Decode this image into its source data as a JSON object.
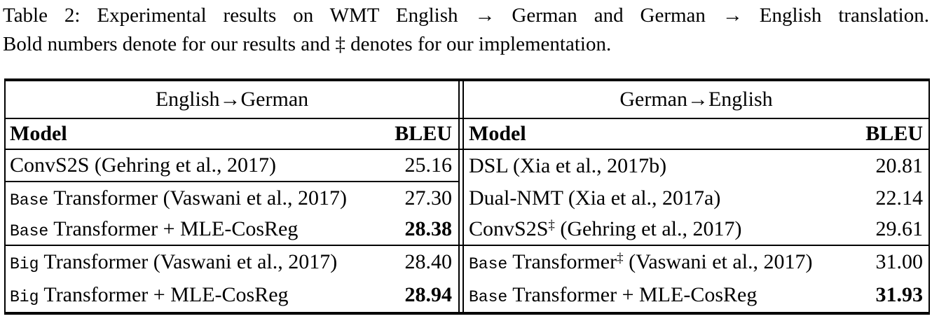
{
  "caption": {
    "line1": "Table 2: Experimental results on WMT English → German and German → English translation.",
    "line2": "Bold numbers denote for our results and ‡ denotes for our implementation."
  },
  "table": {
    "left": {
      "direction_header": "English→German",
      "model_header": "Model",
      "bleu_header": "BLEU",
      "rows": [
        {
          "prefix": "",
          "text": "ConvS2S (Gehring et al., 2017)",
          "sup": "",
          "rest": "",
          "bleu": "25.16",
          "bleu_bold": false
        },
        {
          "prefix": "Base",
          "text": "Transformer (Vaswani et al., 2017)",
          "sup": "",
          "rest": "",
          "bleu": "27.30",
          "bleu_bold": false
        },
        {
          "prefix": "Base",
          "text": "Transformer + MLE-CosReg",
          "sup": "",
          "rest": "",
          "bleu": "28.38",
          "bleu_bold": true
        },
        {
          "prefix": "Big",
          "text": "Transformer (Vaswani et al., 2017)",
          "sup": "",
          "rest": "",
          "bleu": "28.40",
          "bleu_bold": false
        },
        {
          "prefix": "Big",
          "text": "Transformer + MLE-CosReg",
          "sup": "",
          "rest": "",
          "bleu": "28.94",
          "bleu_bold": true
        }
      ]
    },
    "right": {
      "direction_header": "German→English",
      "model_header": "Model",
      "bleu_header": "BLEU",
      "rows": [
        {
          "prefix": "",
          "text": "DSL (Xia et al., 2017b)",
          "sup": "",
          "rest": "",
          "bleu": "20.81",
          "bleu_bold": false
        },
        {
          "prefix": "",
          "text": "Dual-NMT (Xia et al., 2017a)",
          "sup": "",
          "rest": "",
          "bleu": "22.14",
          "bleu_bold": false
        },
        {
          "prefix": "",
          "text": "ConvS2S",
          "sup": "‡",
          "rest": " (Gehring et al., 2017)",
          "bleu": "29.61",
          "bleu_bold": false
        },
        {
          "prefix": "Base",
          "text": "Transformer",
          "sup": "‡",
          "rest": " (Vaswani et al., 2017)",
          "bleu": "31.00",
          "bleu_bold": false
        },
        {
          "prefix": "Base",
          "text": "Transformer + MLE-CosReg",
          "sup": "",
          "rest": "",
          "bleu": "31.93",
          "bleu_bold": true
        }
      ]
    }
  },
  "colors": {
    "text": "#000000",
    "background": "#ffffff",
    "rule": "#000000"
  }
}
